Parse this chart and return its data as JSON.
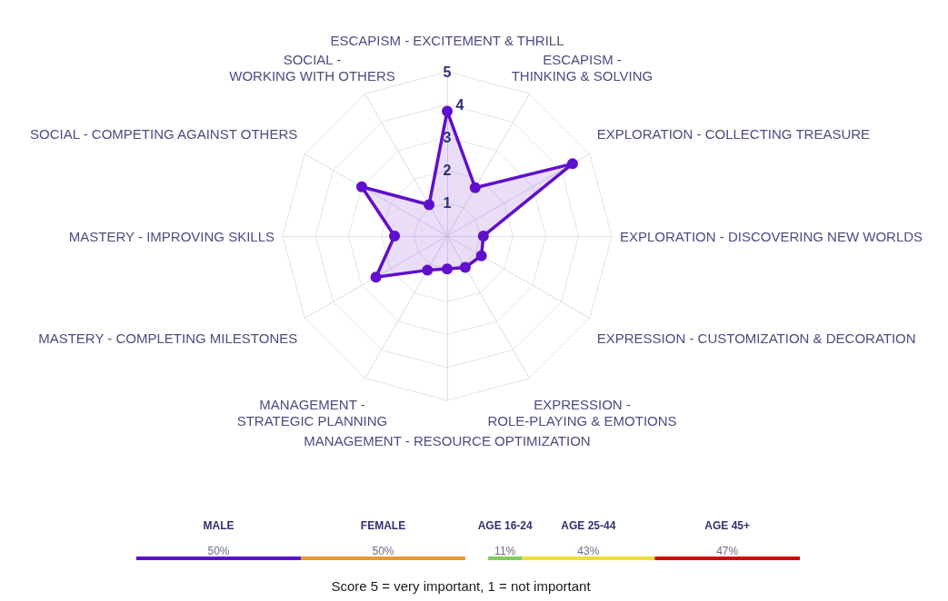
{
  "chart_data": [
    {
      "type": "radar",
      "categories": [
        "ESCAPISM - EXCITEMENT & THRILL",
        "ESCAPISM - THINKING & SOLVING",
        "EXPLORATION - COLLECTING TREASURE",
        "EXPLORATION - DISCOVERING NEW WORLDS",
        "EXPRESSION - CUSTOMIZATION & DECORATION",
        "EXPRESSION - ROLE-PLAYING & EMOTIONS",
        "MANAGEMENT - RESOURCE OPTIMIZATION",
        "MANAGEMENT - STRATEGIC PLANNING",
        "MASTERY - COMPLETING MILESTONES",
        "MASTERY - IMPROVING SKILLS",
        "SOCIAL - COMPETING AGAINST OTHERS",
        "SOCIAL - WORKING WITH OTHERS"
      ],
      "series": [
        {
          "color": "#6010cc",
          "values": [
            3.8,
            1.7,
            4.4,
            1.1,
            1.2,
            1.1,
            1.0,
            1.2,
            2.5,
            1.6,
            3.0,
            1.1
          ]
        }
      ],
      "ylim": [
        0,
        5
      ],
      "yticks": [
        1,
        2,
        3,
        4,
        5
      ],
      "grid": true,
      "marker": "circle",
      "annotations": [
        "Score 5 = very important, 1 = not important"
      ]
    },
    {
      "type": "bar",
      "orientation": "horizontal",
      "stacked": true,
      "categories": [
        null
      ],
      "series": [
        {
          "name": "MALE",
          "color": "#6010cc",
          "values": [
            50
          ],
          "value_labels": [
            "50%"
          ]
        },
        {
          "name": "FEMALE",
          "color": "#e89a2c",
          "values": [
            50
          ],
          "value_labels": [
            "50%"
          ]
        }
      ]
    },
    {
      "type": "bar",
      "orientation": "horizontal",
      "stacked": true,
      "categories": [
        null
      ],
      "series": [
        {
          "name": "AGE 16-24",
          "color": "#80cc5c",
          "values": [
            11
          ],
          "value_labels": [
            "11%"
          ]
        },
        {
          "name": "AGE 25-44",
          "color": "#f0e034",
          "values": [
            43
          ],
          "value_labels": [
            "43%"
          ]
        },
        {
          "name": "AGE 45+",
          "color": "#cc0c0c",
          "values": [
            47
          ],
          "value_labels": [
            "47%"
          ]
        }
      ]
    }
  ]
}
